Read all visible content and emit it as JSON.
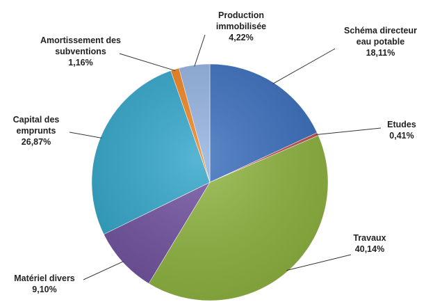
{
  "chart_data": {
    "type": "pie",
    "categories": [
      "Schéma directeur eau potable",
      "Etudes",
      "Travaux",
      "Matériel divers",
      "Capital des emprunts",
      "Amortissement des subventions",
      "Production immobilisée"
    ],
    "values": [
      18.11,
      0.41,
      40.14,
      9.1,
      26.87,
      1.16,
      4.22
    ],
    "value_labels": [
      "18,11%",
      "0,41%",
      "40,14%",
      "9,10%",
      "26,87%",
      "1,16%",
      "4,22%"
    ],
    "colors": [
      "#3b6fbf",
      "#c0504d",
      "#8fb440",
      "#7152a0",
      "#31a6c9",
      "#f0821e",
      "#93b2df"
    ]
  }
}
